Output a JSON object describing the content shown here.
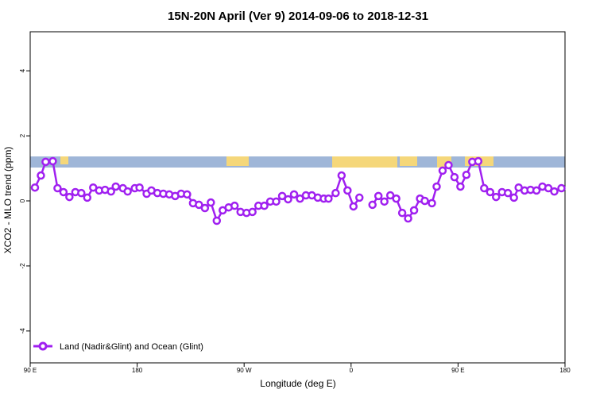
{
  "chart_data": {
    "type": "line",
    "title": "15N-20N April (Ver 9)   2014-09-06 to 2018-12-31",
    "x_label": "Longitude (deg E)",
    "y_label": "XCO2 - MLO trend (ppm)",
    "x": [
      94,
      99,
      103,
      109,
      113,
      118,
      123,
      128,
      133,
      138,
      143,
      148,
      153,
      158,
      162,
      168,
      172,
      178,
      182,
      188,
      192,
      197,
      202,
      207,
      212,
      217,
      222,
      227,
      232,
      237,
      242,
      247,
      252,
      257,
      262,
      267,
      272,
      277,
      282,
      287,
      292,
      297,
      302,
      307,
      312,
      317,
      322,
      327,
      332,
      337,
      341,
      347,
      352,
      357,
      362,
      367,
      372,
      378,
      383,
      388,
      393,
      398,
      403,
      408,
      413,
      418,
      422,
      428,
      432,
      437,
      442,
      447,
      452,
      457,
      462,
      467,
      472,
      477,
      482,
      487,
      492,
      497,
      501,
      506,
      511,
      516,
      521,
      526,
      531,
      537
    ],
    "series": [
      {
        "name": "Land (Nadir&Glint) and Ocean (Glint)",
        "color": "#a020f0",
        "values": [
          0.41,
          0.78,
          1.2,
          1.22,
          0.39,
          0.27,
          0.12,
          0.27,
          0.24,
          0.1,
          0.41,
          0.32,
          0.34,
          0.29,
          0.44,
          0.39,
          0.29,
          0.39,
          0.41,
          0.22,
          0.32,
          0.24,
          0.22,
          0.2,
          0.15,
          0.22,
          0.2,
          -0.07,
          -0.12,
          -0.22,
          -0.05,
          -0.61,
          -0.29,
          -0.2,
          -0.15,
          -0.34,
          -0.37,
          -0.34,
          -0.15,
          -0.15,
          -0.02,
          -0.02,
          0.15,
          0.05,
          0.2,
          0.07,
          0.17,
          0.17,
          0.1,
          0.07,
          0.07,
          0.24,
          0.78,
          0.32,
          -0.17,
          0.1,
          null,
          -0.12,
          0.15,
          -0.02,
          0.17,
          0.07,
          -0.37,
          -0.54,
          -0.29,
          0.07,
          0,
          -0.07,
          0.44,
          0.93,
          1.1,
          0.73,
          0.44,
          0.8,
          1.2,
          1.22,
          0.39,
          0.27,
          0.12,
          0.27,
          0.24,
          0.1,
          0.41,
          0.32,
          0.34,
          0.32,
          0.44,
          0.39,
          0.29,
          0.39
        ]
      }
    ],
    "xlim": [
      90,
      540
    ],
    "xticks": [
      {
        "value": 90,
        "label": "90 E"
      },
      180,
      {
        "value": 270,
        "label": "90 W"
      },
      {
        "value": 360,
        "label": "0"
      },
      {
        "value": 450,
        "label": "90 E"
      },
      {
        "value": 540,
        "label": "180"
      }
    ],
    "ylim": [
      -4.98,
      5.2
    ],
    "yticks": [
      -4,
      -2,
      0,
      2,
      4
    ],
    "legend": "bottom-left"
  }
}
